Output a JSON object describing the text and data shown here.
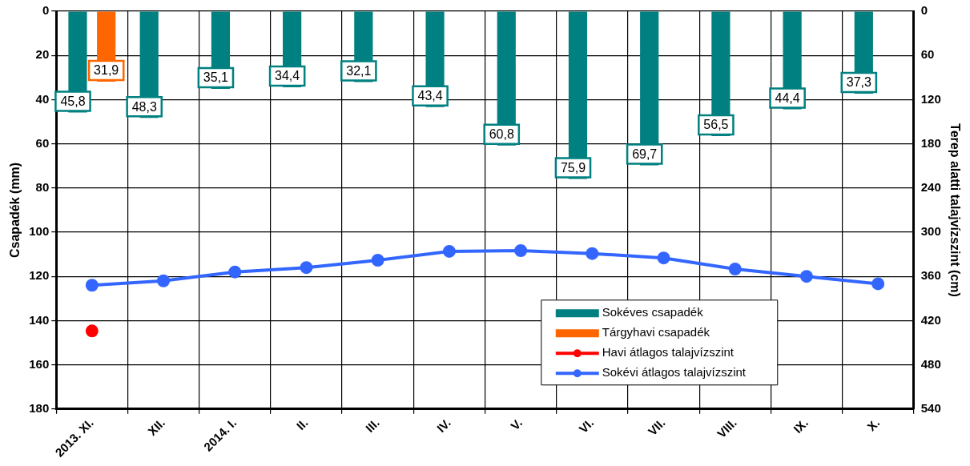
{
  "chart_data": {
    "type": "bar",
    "xlabel": null,
    "ylabel": "Csapadék (mm)",
    "y2label": "Terep alatti talajvízszint (cm)",
    "categories": [
      "2013. XI.",
      "XII.",
      "2014. I.",
      "II.",
      "III.",
      "IV.",
      "V.",
      "VI.",
      "VII.",
      "VIII.",
      "IX.",
      "X."
    ],
    "series": [
      {
        "name": "Sokéves csapadék",
        "color": "#008080",
        "values": [
          45.8,
          48.3,
          35.1,
          34.4,
          32.1,
          43.4,
          60.8,
          75.9,
          69.7,
          56.5,
          44.4,
          37.3
        ],
        "value_labels": [
          "45,8",
          "48,3",
          "35,1",
          "34,4",
          "32,1",
          "43,4",
          "60,8",
          "75,9",
          "69,7",
          "56,5",
          "44,4",
          "37,3"
        ]
      },
      {
        "name": "Tárgyhavi csapadék",
        "color": "#ff6600",
        "values": [
          31.9,
          null,
          null,
          null,
          null,
          null,
          null,
          null,
          null,
          null,
          null,
          null
        ],
        "value_labels": [
          "31,9",
          null,
          null,
          null,
          null,
          null,
          null,
          null,
          null,
          null,
          null,
          null
        ]
      },
      {
        "name": "Havi átlagos talajvízszint",
        "type": "line",
        "axis": "y2",
        "color": "#ff0000",
        "values": [
          434,
          null,
          null,
          null,
          null,
          null,
          null,
          null,
          null,
          null,
          null,
          null
        ]
      },
      {
        "name": "Sokévi átlagos talajvízszint",
        "type": "line",
        "axis": "y2",
        "color": "#3366ff",
        "values": [
          372,
          366,
          354,
          348,
          338,
          326,
          325,
          329,
          335,
          350,
          360,
          370
        ]
      }
    ],
    "ylim": [
      180,
      0
    ],
    "yticks": [
      0,
      20,
      40,
      60,
      80,
      100,
      120,
      140,
      160,
      180
    ],
    "y2lim": [
      540,
      0
    ],
    "y2ticks": [
      0,
      60,
      120,
      180,
      240,
      300,
      360,
      420,
      480,
      540
    ],
    "grid": true,
    "legend": "bottom right",
    "marker": "circle",
    "line_style": "solid"
  }
}
